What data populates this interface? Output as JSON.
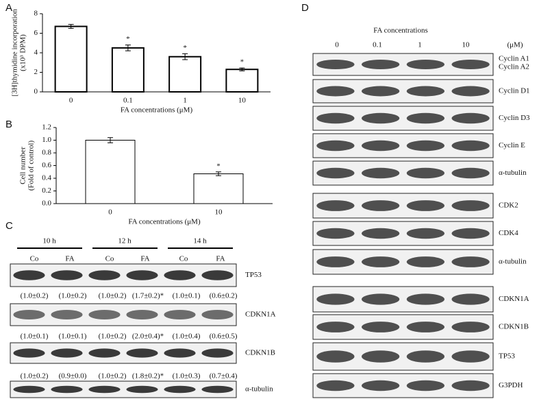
{
  "chart_data": [
    {
      "type": "bar",
      "panel": "A",
      "ylabel": [
        "[3H]thymidine incorporation",
        "(x10³ DPM)"
      ],
      "xlabel": "FA concentrations (μM)",
      "categories": [
        "0",
        "0.1",
        "1",
        "10"
      ],
      "values": [
        6.7,
        4.5,
        3.6,
        2.3
      ],
      "errors": [
        0.2,
        0.3,
        0.3,
        0.15
      ],
      "significance": [
        null,
        "*",
        "*",
        "*"
      ],
      "ylim": [
        0,
        8
      ],
      "yticks": [
        0,
        2,
        4,
        6,
        8
      ],
      "color": "#ffffff"
    },
    {
      "type": "bar",
      "panel": "B",
      "ylabel": [
        "Cell number",
        "(Fold of control)"
      ],
      "xlabel": "FA concentrations (μM)",
      "categories": [
        "0",
        "10"
      ],
      "values": [
        1.0,
        0.47
      ],
      "errors": [
        0.04,
        0.03
      ],
      "significance": [
        null,
        "*"
      ],
      "ylim": [
        0,
        1.2
      ],
      "yticks": [
        {
          "value": 0,
          "label": "0.0"
        },
        {
          "value": 0.2,
          "label": "0.2"
        },
        {
          "value": 0.4,
          "label": "0.4"
        },
        {
          "value": 0.6,
          "label": "0.6"
        },
        {
          "value": 0.8,
          "label": "0.8"
        },
        {
          "value": 1.0,
          "label": "1.0"
        },
        {
          "value": 1.2,
          "label": "1.2"
        }
      ],
      "color": "#ffffff"
    }
  ],
  "panel_c": {
    "label": "C",
    "times": [
      "10 h",
      "12 h",
      "14 h"
    ],
    "lanes": [
      "Co",
      "FA",
      "Co",
      "FA",
      "Co",
      "FA"
    ],
    "rows": [
      {
        "name": "TP53",
        "quant": [
          "(1.0±0.2)",
          "(1.0±0.2)",
          "(1.0±0.2)",
          "(1.7±0.2)*",
          "(1.0±0.1)",
          "(0.6±0.2)"
        ]
      },
      {
        "name": "CDKN1A",
        "quant": [
          "(1.0±0.1)",
          "(1.0±0.1)",
          "(1.0±0.2)",
          "(2.0±0.4)*",
          "(1.0±0.4)",
          "(0.6±0.5)"
        ]
      },
      {
        "name": "CDKN1B",
        "quant": [
          "(1.0±0.2)",
          "(0.9±0.0)",
          "(1.0±0.2)",
          "(1.8±0.2)*",
          "(1.0±0.3)",
          "(0.7±0.4)"
        ]
      },
      {
        "name": "α-tubulin"
      }
    ]
  },
  "panel_d": {
    "label": "D",
    "title": "FA concentrations",
    "unit": "(μM)",
    "lanes": [
      "0",
      "0.1",
      "1",
      "10"
    ],
    "blots": [
      [
        "Cyclin A1",
        "Cyclin A2"
      ],
      [
        "Cyclin D1"
      ],
      [
        "Cyclin D3"
      ],
      [
        "Cyclin E"
      ],
      [
        "α-tubulin"
      ],
      [
        "CDK2"
      ],
      [
        "CDK4"
      ],
      [
        "α-tubulin"
      ],
      [
        "CDKN1A"
      ],
      [
        "CDKN1B"
      ],
      [
        "TP53"
      ],
      [
        "G3PDH"
      ]
    ]
  }
}
